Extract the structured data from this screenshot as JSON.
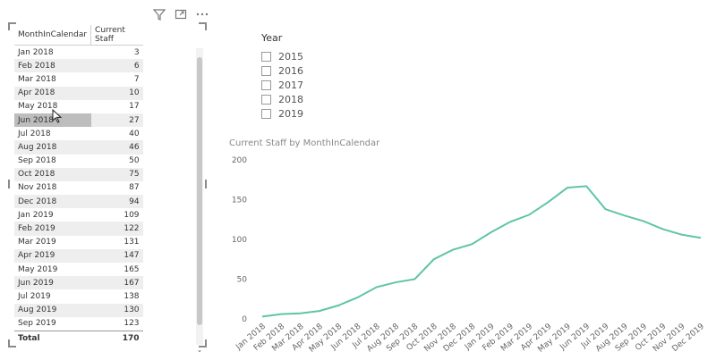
{
  "table": {
    "headers": {
      "month": "MonthInCalendar",
      "staff": "Current Staff"
    },
    "rows": [
      {
        "month": "Jan 2018",
        "staff": "3"
      },
      {
        "month": "Feb 2018",
        "staff": "6"
      },
      {
        "month": "Mar 2018",
        "staff": "7"
      },
      {
        "month": "Apr 2018",
        "staff": "10"
      },
      {
        "month": "May 2018",
        "staff": "17"
      },
      {
        "month": "Jun 2018",
        "staff": "27"
      },
      {
        "month": "Jul 2018",
        "staff": "40"
      },
      {
        "month": "Aug 2018",
        "staff": "46"
      },
      {
        "month": "Sep 2018",
        "staff": "50"
      },
      {
        "month": "Oct 2018",
        "staff": "75"
      },
      {
        "month": "Nov 2018",
        "staff": "87"
      },
      {
        "month": "Dec 2018",
        "staff": "94"
      },
      {
        "month": "Jan 2019",
        "staff": "109"
      },
      {
        "month": "Feb 2019",
        "staff": "122"
      },
      {
        "month": "Mar 2019",
        "staff": "131"
      },
      {
        "month": "Apr 2019",
        "staff": "147"
      },
      {
        "month": "May 2019",
        "staff": "165"
      },
      {
        "month": "Jun 2019",
        "staff": "167"
      },
      {
        "month": "Jul 2019",
        "staff": "138"
      },
      {
        "month": "Aug 2019",
        "staff": "130"
      },
      {
        "month": "Sep 2019",
        "staff": "123"
      }
    ],
    "total": {
      "label": "Total",
      "value": "170"
    },
    "highlighted_row": "Jun 2018"
  },
  "visual_header_icons": [
    "filter-icon",
    "focus-mode-icon",
    "more-options-icon"
  ],
  "slicer": {
    "title": "Year",
    "options": [
      "2015",
      "2016",
      "2017",
      "2018",
      "2019"
    ]
  },
  "chart_data": {
    "type": "line",
    "title": "Current Staff by MonthInCalendar",
    "xlabel": "",
    "ylabel": "",
    "categories": [
      "Jan 2018",
      "Feb 2018",
      "Mar 2018",
      "Apr 2018",
      "May 2018",
      "Jun 2018",
      "Jul 2018",
      "Aug 2018",
      "Sep 2018",
      "Oct 2018",
      "Nov 2018",
      "Dec 2018",
      "Jan 2019",
      "Feb 2019",
      "Mar 2019",
      "Apr 2019",
      "May 2019",
      "Jun 2019",
      "Jul 2019",
      "Aug 2019",
      "Sep 2019",
      "Oct 2019",
      "Nov 2019",
      "Dec 2019"
    ],
    "values": [
      3,
      6,
      7,
      10,
      17,
      27,
      40,
      46,
      50,
      75,
      87,
      94,
      109,
      122,
      131,
      147,
      165,
      167,
      138,
      130,
      123,
      113,
      106,
      102
    ],
    "ylim": [
      0,
      200
    ],
    "yticks": [
      0,
      50,
      100,
      150,
      200
    ],
    "grid": false,
    "line_color": "#5fc4a8"
  }
}
